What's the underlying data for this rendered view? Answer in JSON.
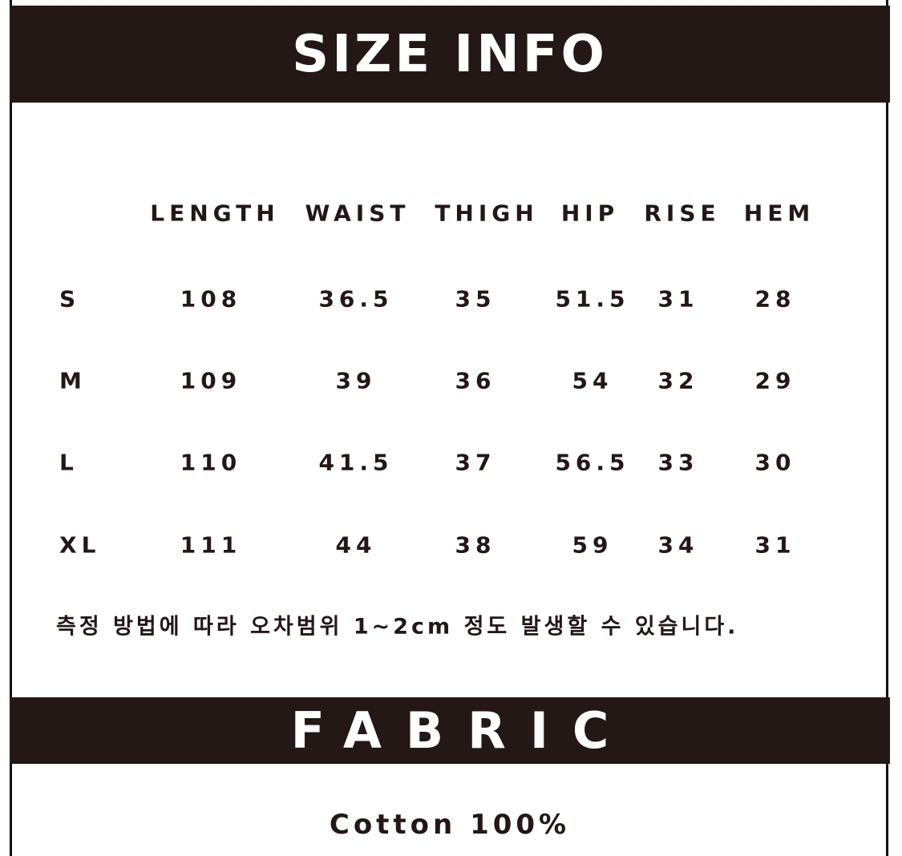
{
  "title": "SIZE INFO",
  "columns": [
    "LENGTH",
    "WAIST",
    "THIGH",
    "HIP",
    "RISE",
    "HEM"
  ],
  "rows": [
    {
      "size": "S",
      "values": [
        "108",
        "36.5",
        "35",
        "51.5",
        "31",
        "28"
      ]
    },
    {
      "size": "M",
      "values": [
        "109",
        "39",
        "36",
        "54",
        "32",
        "29"
      ]
    },
    {
      "size": "L",
      "values": [
        "110",
        "41.5",
        "37",
        "56.5",
        "33",
        "30"
      ]
    },
    {
      "size": "XL",
      "values": [
        "111",
        "44",
        "38",
        "59",
        "34",
        "31"
      ]
    }
  ],
  "note": "측정 방법에 따라 오차범위 1~2cm 정도 발생할 수 있습니다.",
  "fabric_title": "FABRIC",
  "fabric": "Cotton 100%",
  "colors": {
    "bar": "#231815",
    "text": "#231815"
  }
}
